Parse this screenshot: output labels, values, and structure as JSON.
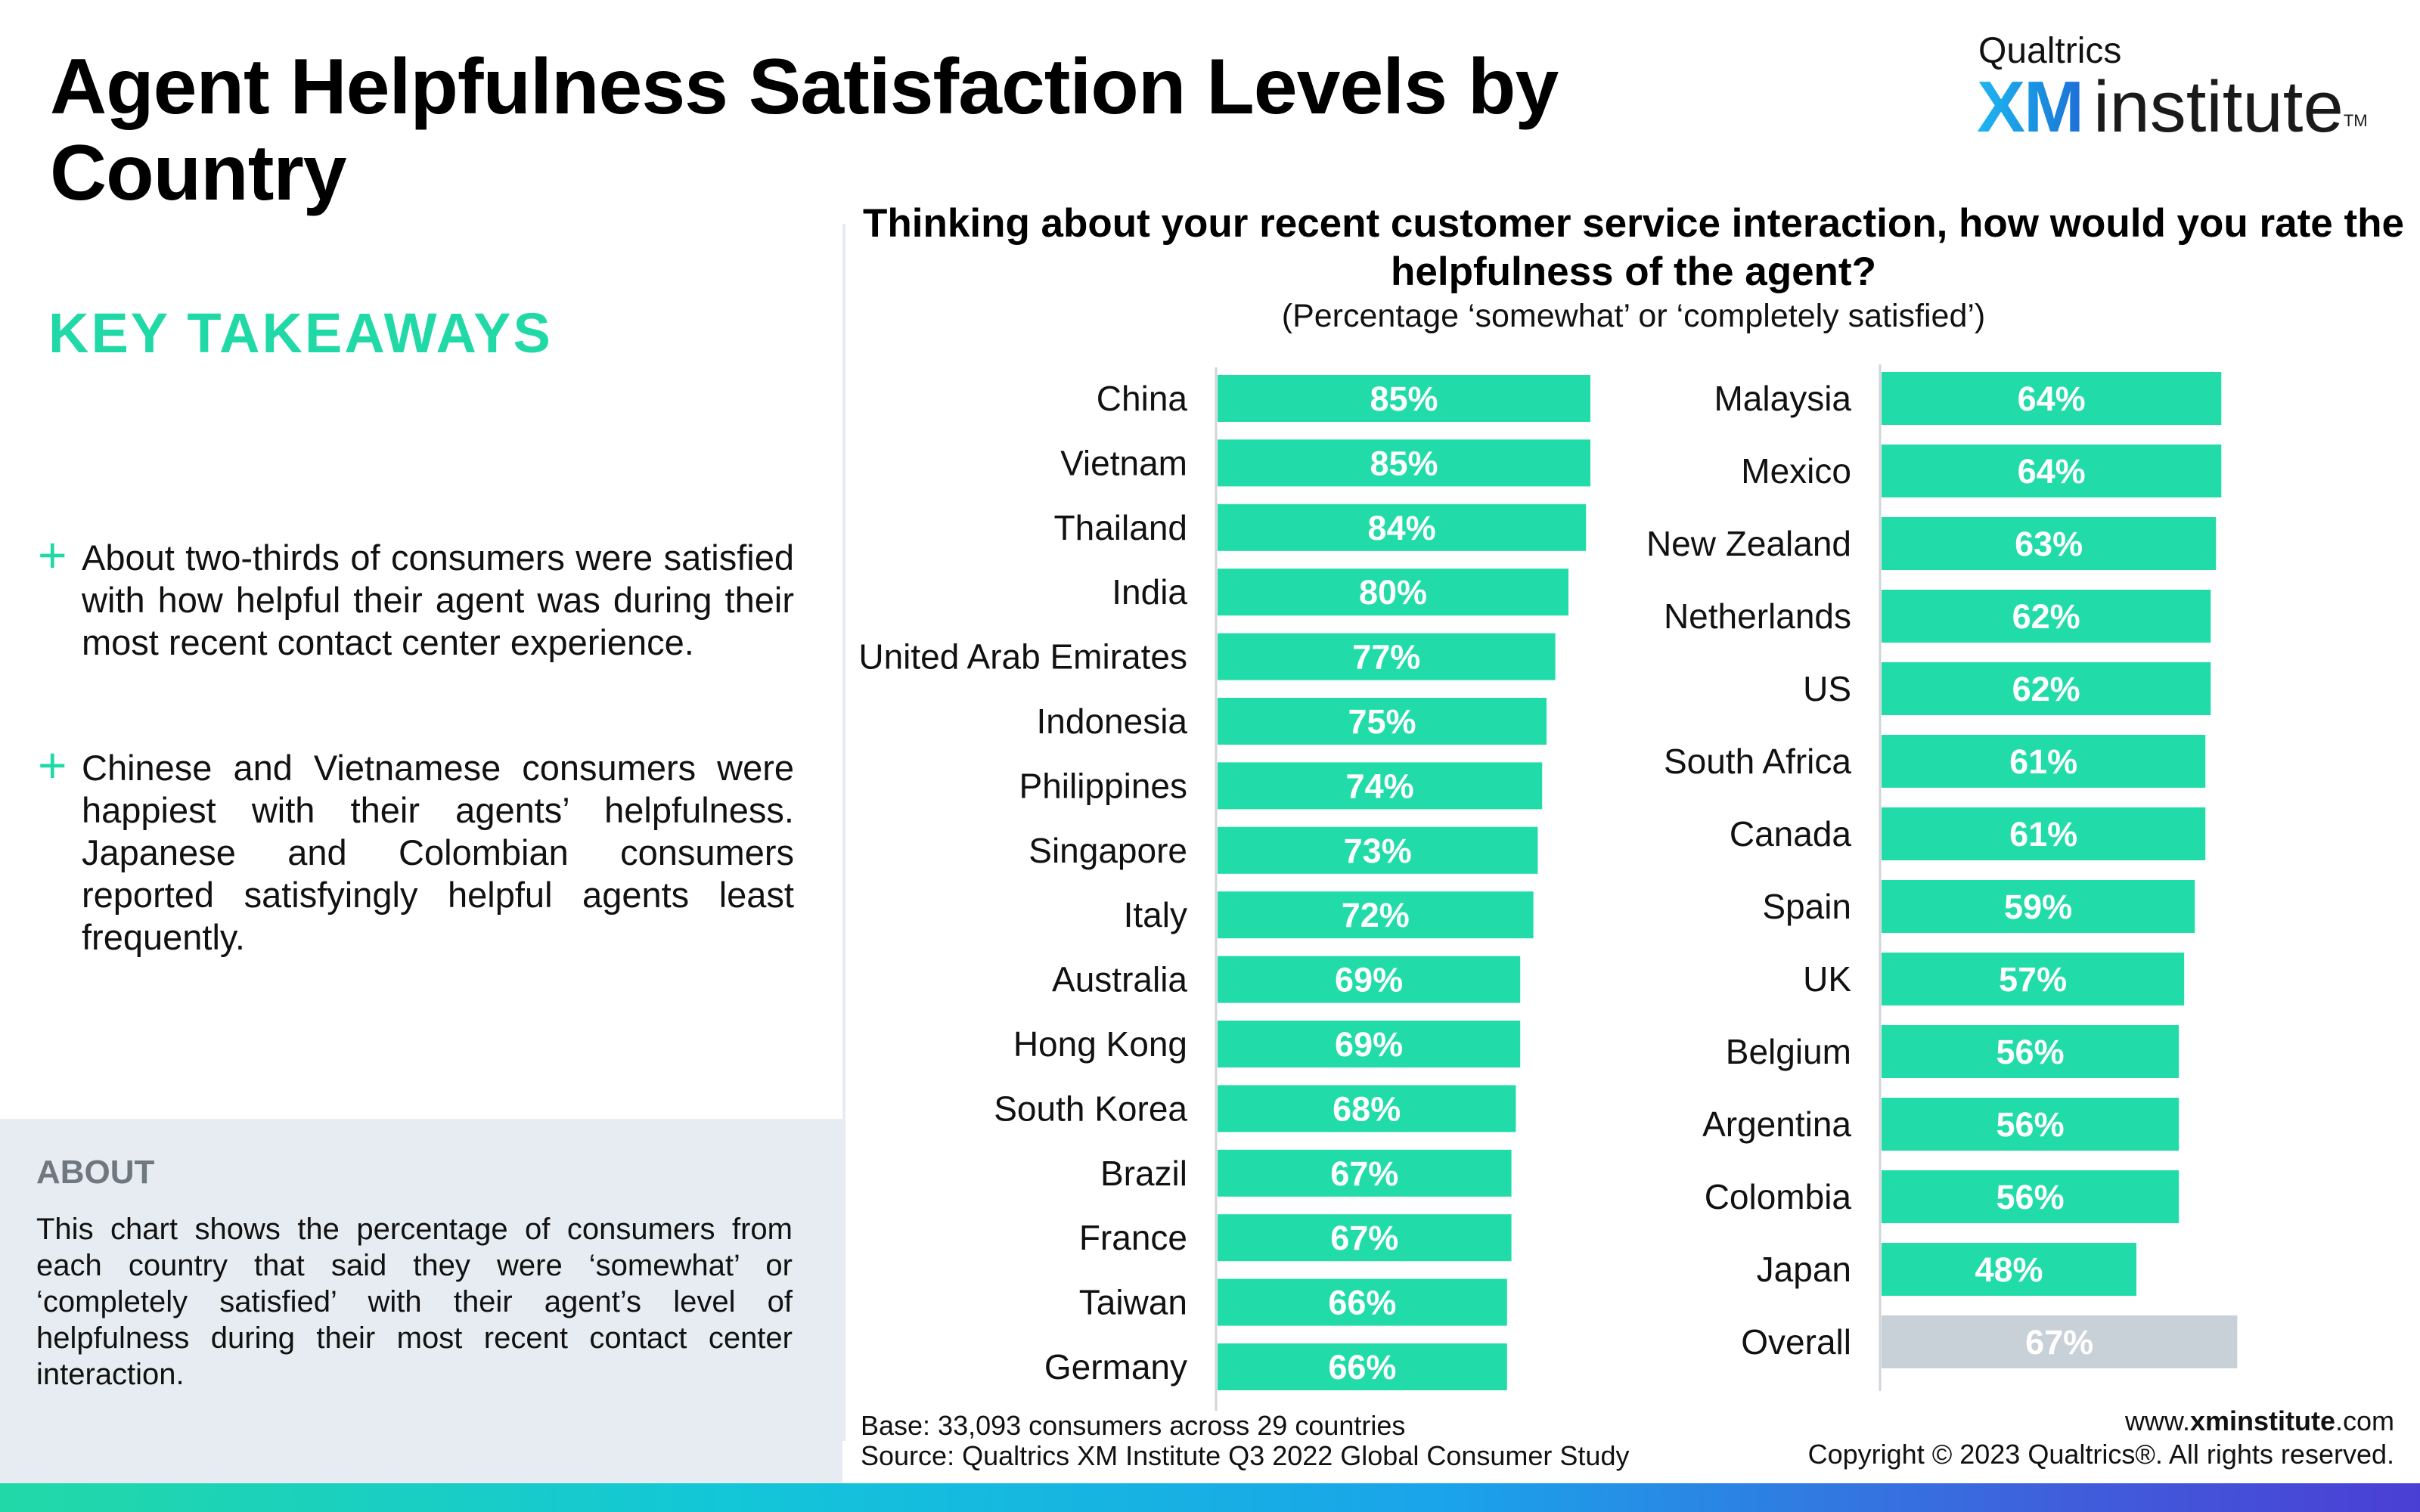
{
  "title": "Agent Helpfulness Satisfaction Levels by Country",
  "brand": {
    "top": "Qualtrics",
    "xm": "XM",
    "word": "institute",
    "tm": "TM"
  },
  "takeaways": {
    "heading": "KEY TAKEAWAYS",
    "symbol": "+",
    "items": [
      "About two-thirds of consumers were satisfied with how helpful their agent was during their most recent contact center experience.",
      "Chinese and Vietnamese consumers were happiest with their agents’ helpfulness. Japanese and Colombian consumers reported satisfyingly helpful agents least frequently."
    ]
  },
  "about": {
    "heading": "ABOUT",
    "text": "This chart shows the percentage of consumers from each country that said they were ‘somewhat’ or ‘completely satisfied’ with their agent’s level of helpfulness during their most recent contact center interaction."
  },
  "chart_data": {
    "type": "bar",
    "orientation": "horizontal",
    "title": "Thinking about your recent customer service interaction, how would you rate the helpfulness of the agent?",
    "subtitle": "(Percentage ‘somewhat’ or ‘completely satisfied’)",
    "unit": "%",
    "colors": {
      "bar": "#21dca9",
      "overall": "#c9d1d8"
    },
    "groups": [
      {
        "categories": [
          "China",
          "Vietnam",
          "Thailand",
          "India",
          "United Arab Emirates",
          "Indonesia",
          "Philippines",
          "Singapore",
          "Italy",
          "Australia",
          "Hong Kong",
          "South Korea",
          "Brazil",
          "France",
          "Taiwan",
          "Germany"
        ],
        "values": [
          85,
          85,
          84,
          80,
          77,
          75,
          74,
          73,
          72,
          69,
          69,
          68,
          67,
          67,
          66,
          66
        ]
      },
      {
        "categories": [
          "Malaysia",
          "Mexico",
          "New Zealand",
          "Netherlands",
          "US",
          "South Africa",
          "Canada",
          "Spain",
          "UK",
          "Belgium",
          "Argentina",
          "Colombia",
          "Japan",
          "Overall"
        ],
        "values": [
          64,
          64,
          63,
          62,
          62,
          61,
          61,
          59,
          57,
          56,
          56,
          56,
          48,
          67
        ]
      }
    ]
  },
  "footer": {
    "base": "Base: 33,093 consumers across 29 countries",
    "source": "Source: Qualtrics XM Institute Q3 2022 Global Consumer Study",
    "url_prefix": "www.",
    "url_bold": "xminstitute",
    "url_suffix": ".com",
    "copyright": "Copyright © 2023 Qualtrics®. All rights reserved."
  }
}
